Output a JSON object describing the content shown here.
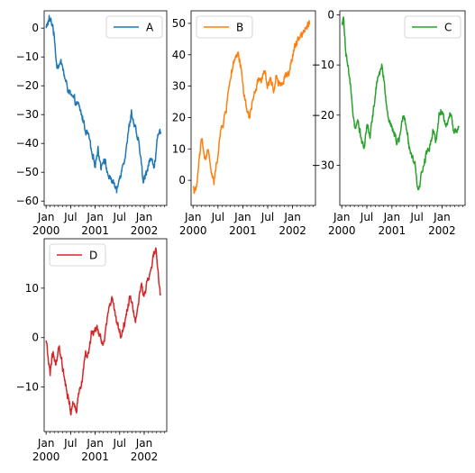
{
  "chart_data": [
    {
      "type": "line",
      "series": [
        {
          "name": "A",
          "color": "#1f77b4",
          "keypoints": [
            [
              0,
              0
            ],
            [
              0.03,
              3
            ],
            [
              0.07,
              1
            ],
            [
              0.11,
              -13
            ],
            [
              0.16,
              -12
            ],
            [
              0.2,
              -19
            ],
            [
              0.26,
              -24
            ],
            [
              0.33,
              -27
            ],
            [
              0.37,
              -31
            ],
            [
              0.4,
              -35
            ],
            [
              0.44,
              -38
            ],
            [
              0.47,
              -45
            ],
            [
              0.5,
              -47
            ],
            [
              0.53,
              -42
            ],
            [
              0.56,
              -48
            ],
            [
              0.59,
              -45
            ],
            [
              0.64,
              -52
            ],
            [
              0.68,
              -53
            ],
            [
              0.72,
              -57
            ],
            [
              0.76,
              -50
            ],
            [
              0.8,
              -45
            ],
            [
              0.84,
              -36
            ],
            [
              0.87,
              -29
            ],
            [
              0.9,
              -34
            ],
            [
              0.93,
              -38
            ],
            [
              0.96,
              -43
            ],
            [
              0.99,
              -54
            ],
            [
              1.02,
              -50
            ],
            [
              1.06,
              -45
            ],
            [
              1.1,
              -48
            ],
            [
              1.14,
              -38
            ],
            [
              1.17,
              -36
            ]
          ]
        }
      ],
      "ylim": [
        -61.5,
        6
      ],
      "yticks": [
        0,
        -10,
        -20,
        -30,
        -40,
        -50,
        -60
      ],
      "ytick_labels": [
        "0",
        "−10",
        "−20",
        "−30",
        "−40",
        "−50",
        "−60"
      ],
      "legend_position": "upper right"
    },
    {
      "type": "line",
      "series": [
        {
          "name": "B",
          "color": "#ff7f0e",
          "keypoints": [
            [
              0,
              -2
            ],
            [
              0.03,
              -4
            ],
            [
              0.06,
              6
            ],
            [
              0.09,
              14
            ],
            [
              0.12,
              6
            ],
            [
              0.15,
              10
            ],
            [
              0.18,
              3
            ],
            [
              0.21,
              -1
            ],
            [
              0.24,
              6
            ],
            [
              0.27,
              14
            ],
            [
              0.3,
              18
            ],
            [
              0.33,
              22
            ],
            [
              0.36,
              30
            ],
            [
              0.39,
              35
            ],
            [
              0.42,
              38
            ],
            [
              0.45,
              40
            ],
            [
              0.48,
              36
            ],
            [
              0.51,
              28
            ],
            [
              0.54,
              22
            ],
            [
              0.57,
              20
            ],
            [
              0.6,
              26
            ],
            [
              0.63,
              28
            ],
            [
              0.66,
              33
            ],
            [
              0.69,
              31
            ],
            [
              0.72,
              35
            ],
            [
              0.75,
              30
            ],
            [
              0.78,
              33
            ],
            [
              0.81,
              28
            ],
            [
              0.84,
              34
            ],
            [
              0.87,
              30
            ],
            [
              0.9,
              31
            ],
            [
              0.93,
              34
            ],
            [
              0.96,
              34
            ],
            [
              0.99,
              38
            ],
            [
              1.02,
              42
            ],
            [
              1.05,
              44
            ],
            [
              1.08,
              46
            ],
            [
              1.11,
              48
            ],
            [
              1.14,
              49
            ],
            [
              1.17,
              51
            ]
          ]
        }
      ],
      "ylim": [
        -8,
        54
      ],
      "yticks": [
        50,
        40,
        30,
        20,
        10,
        0
      ],
      "ytick_labels": [
        "50",
        "40",
        "30",
        "20",
        "10",
        "0"
      ],
      "legend_position": "upper left"
    },
    {
      "type": "line",
      "series": [
        {
          "name": "C",
          "color": "#2ca02c",
          "keypoints": [
            [
              0,
              -2
            ],
            [
              0.02,
              -1
            ],
            [
              0.04,
              -8
            ],
            [
              0.07,
              -12
            ],
            [
              0.1,
              -17
            ],
            [
              0.13,
              -22
            ],
            [
              0.16,
              -21
            ],
            [
              0.19,
              -24
            ],
            [
              0.22,
              -27
            ],
            [
              0.25,
              -22
            ],
            [
              0.28,
              -24
            ],
            [
              0.31,
              -20
            ],
            [
              0.34,
              -15
            ],
            [
              0.37,
              -12
            ],
            [
              0.4,
              -10
            ],
            [
              0.43,
              -15
            ],
            [
              0.46,
              -20
            ],
            [
              0.49,
              -22
            ],
            [
              0.52,
              -23
            ],
            [
              0.55,
              -26
            ],
            [
              0.58,
              -24
            ],
            [
              0.61,
              -20
            ],
            [
              0.64,
              -22
            ],
            [
              0.67,
              -26
            ],
            [
              0.7,
              -28
            ],
            [
              0.73,
              -30
            ],
            [
              0.76,
              -36
            ],
            [
              0.79,
              -32
            ],
            [
              0.82,
              -30
            ],
            [
              0.85,
              -27
            ],
            [
              0.88,
              -26
            ],
            [
              0.91,
              -23
            ],
            [
              0.94,
              -25
            ],
            [
              0.97,
              -20
            ],
            [
              1,
              -19
            ],
            [
              1.03,
              -22
            ],
            [
              1.06,
              -21
            ],
            [
              1.09,
              -20
            ],
            [
              1.12,
              -23
            ],
            [
              1.15,
              -23
            ],
            [
              1.17,
              -22
            ]
          ]
        }
      ],
      "ylim": [
        -38,
        0.8
      ],
      "yticks": [
        0,
        -10,
        -20,
        -30
      ],
      "ytick_labels": [
        "0",
        "−10",
        "−20",
        "−30"
      ],
      "legend_position": "upper right"
    },
    {
      "type": "line",
      "series": [
        {
          "name": "D",
          "color": "#d62728",
          "keypoints": [
            [
              0,
              -1
            ],
            [
              0.02,
              -4
            ],
            [
              0.04,
              -7
            ],
            [
              0.07,
              -3
            ],
            [
              0.1,
              -6
            ],
            [
              0.13,
              -2
            ],
            [
              0.16,
              -5
            ],
            [
              0.19,
              -9
            ],
            [
              0.22,
              -12
            ],
            [
              0.25,
              -15
            ],
            [
              0.28,
              -13
            ],
            [
              0.31,
              -15
            ],
            [
              0.34,
              -11
            ],
            [
              0.37,
              -8
            ],
            [
              0.4,
              -3
            ],
            [
              0.43,
              -4
            ],
            [
              0.46,
              1
            ],
            [
              0.49,
              1
            ],
            [
              0.52,
              2
            ],
            [
              0.55,
              0
            ],
            [
              0.58,
              -2
            ],
            [
              0.61,
              2
            ],
            [
              0.64,
              6
            ],
            [
              0.67,
              8
            ],
            [
              0.7,
              5
            ],
            [
              0.73,
              3
            ],
            [
              0.76,
              0
            ],
            [
              0.79,
              2
            ],
            [
              0.82,
              5
            ],
            [
              0.85,
              8
            ],
            [
              0.88,
              7
            ],
            [
              0.91,
              3
            ],
            [
              0.94,
              7
            ],
            [
              0.97,
              10
            ],
            [
              1,
              9
            ],
            [
              1.03,
              11
            ],
            [
              1.06,
              13
            ],
            [
              1.09,
              16
            ],
            [
              1.12,
              18
            ],
            [
              1.15,
              11
            ],
            [
              1.17,
              8
            ]
          ]
        }
      ],
      "ylim": [
        -19,
        20
      ],
      "yticks": [
        10,
        0,
        -10
      ],
      "ytick_labels": [
        "10",
        "0",
        "−10"
      ],
      "legend_position": "upper left"
    }
  ],
  "x_axis": {
    "range": [
      -0.02,
      1.23
    ],
    "major_ticks": [
      {
        "label": "Jan\n2000",
        "x": 0
      },
      {
        "label": "Jul",
        "x": 0.25
      },
      {
        "label": "Jan\n2001",
        "x": 0.5
      },
      {
        "label": "Jul",
        "x": 0.75
      },
      {
        "label": "Jan\n2002",
        "x": 1
      },
      {
        "label": "Jul",
        "x": 1.25
      }
    ],
    "minor_tick_step": 0.041667
  }
}
